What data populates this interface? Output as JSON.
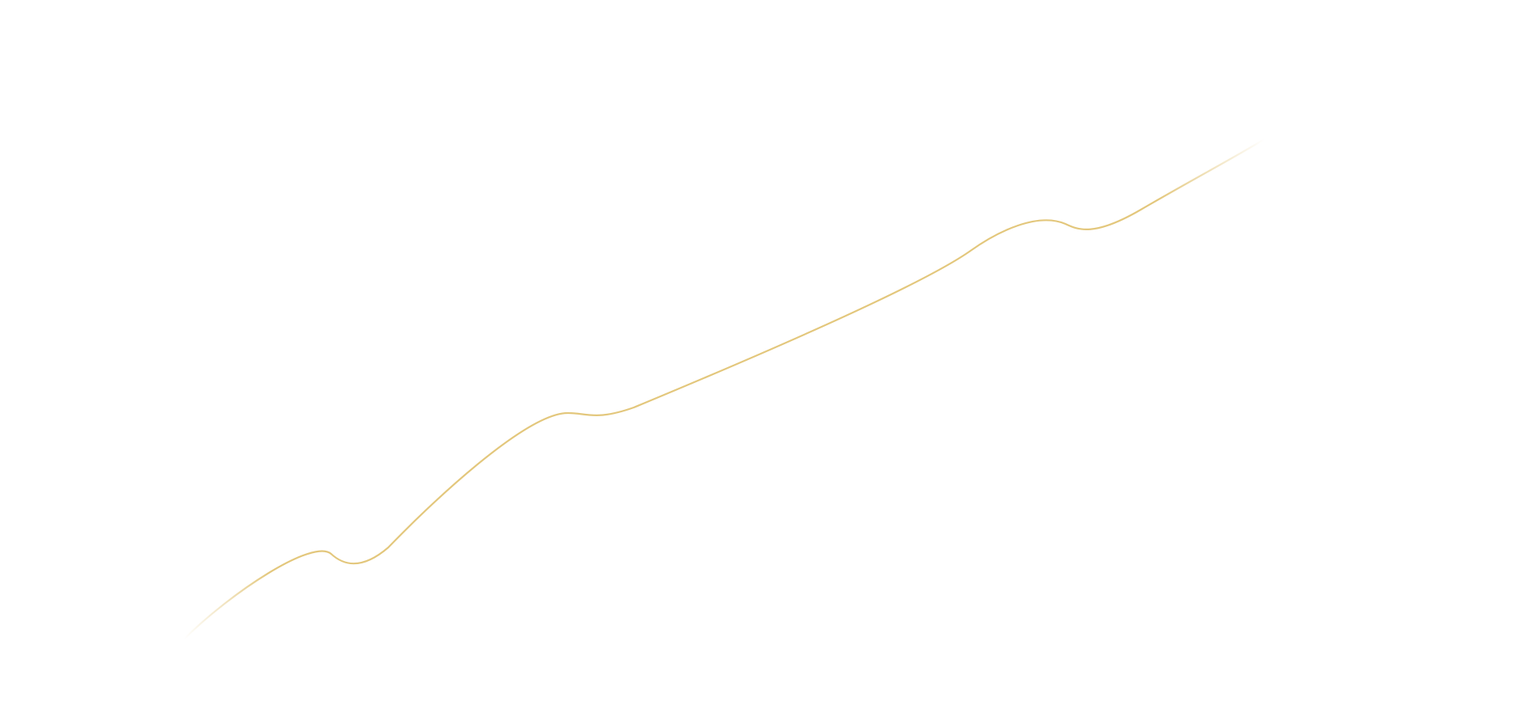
{
  "decoration": {
    "line_color": "#E3C77C",
    "background_color": "#FFFFFF"
  }
}
